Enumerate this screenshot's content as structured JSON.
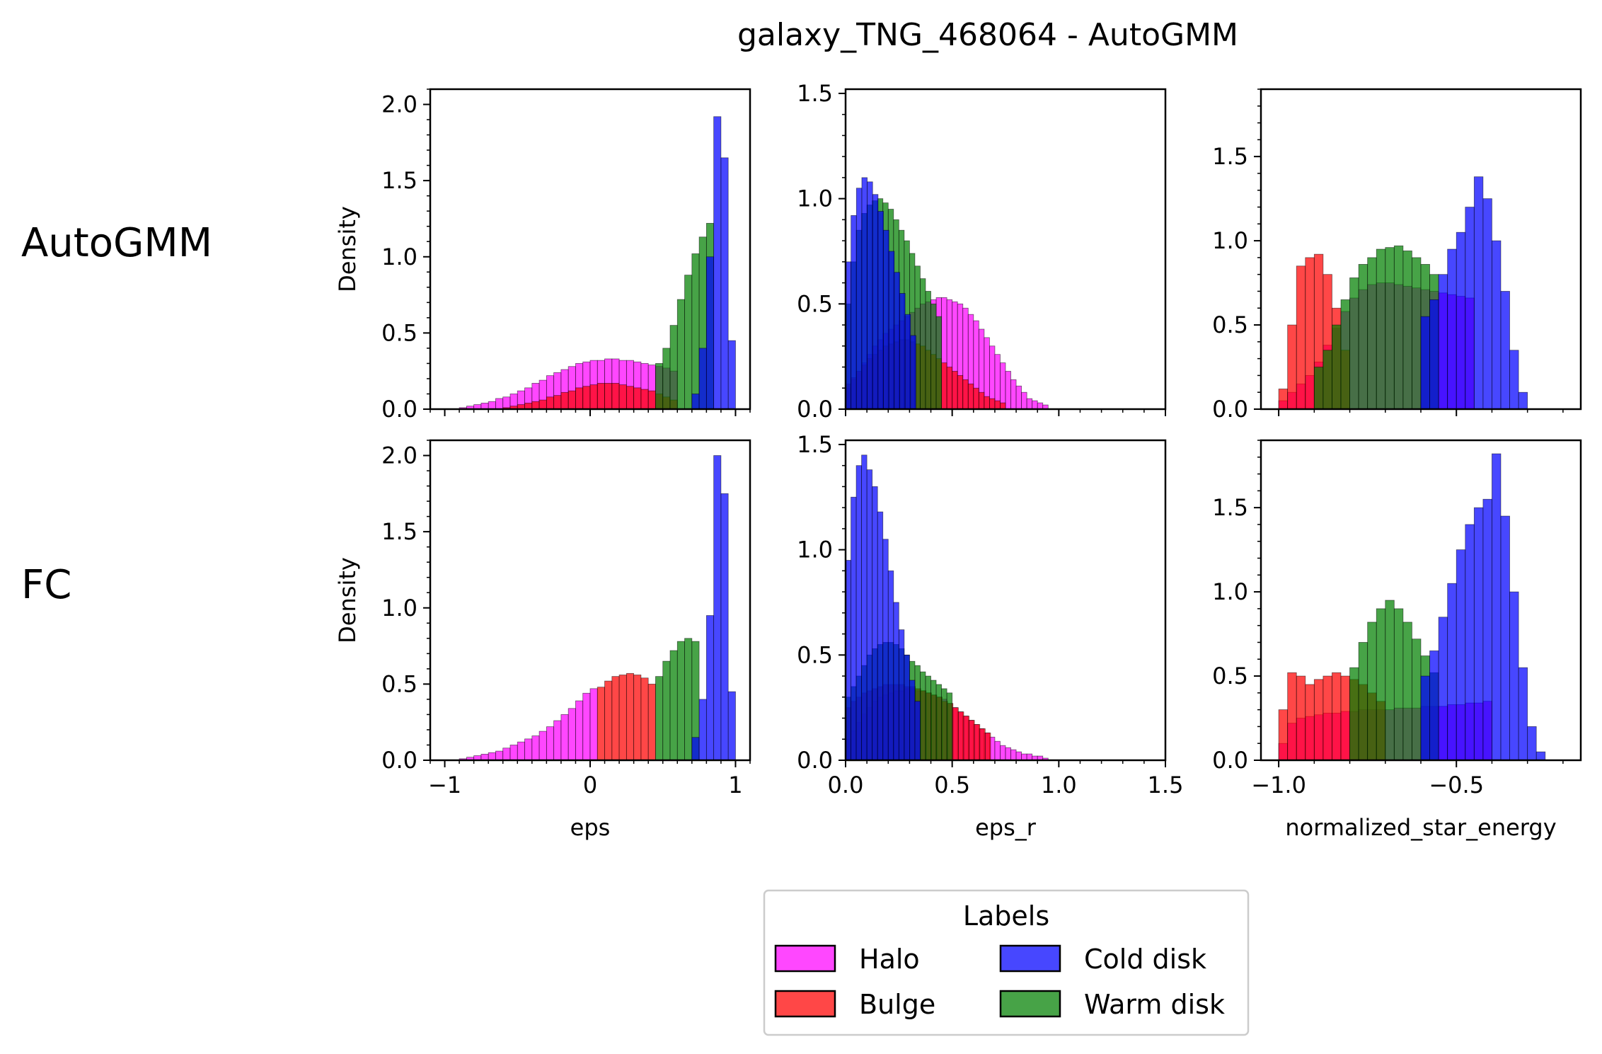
{
  "figure": {
    "title": "galaxy_TNG_468064 - AutoGMM",
    "row_labels": [
      "AutoGMM",
      "FC"
    ]
  },
  "legend": {
    "title": "Labels",
    "entries": [
      {
        "name": "Halo",
        "color": "#ff00ff"
      },
      {
        "name": "Cold disk",
        "color": "#0000ff"
      },
      {
        "name": "Bulge",
        "color": "#ff0000"
      },
      {
        "name": "Warm disk",
        "color": "#008000"
      }
    ]
  },
  "chart_data": [
    {
      "type": "bar",
      "subtype": "histogram",
      "row": 0,
      "col": 0,
      "xlabel": "",
      "ylabel": "Density",
      "xlim": [
        -1.1,
        1.1
      ],
      "ylim": [
        0,
        2.1
      ],
      "xticks": [
        -1,
        0,
        1
      ],
      "xtick_labels": [],
      "yticks": [
        0,
        0.5,
        1.0,
        1.5,
        2.0
      ],
      "ytick_labels": [
        "0.0",
        "0.5",
        "1.0",
        "1.5",
        "2.0"
      ],
      "series": [
        {
          "name": "Halo",
          "range": [
            -0.9,
            0.6
          ],
          "bins": 30,
          "values": [
            0.01,
            0.02,
            0.03,
            0.04,
            0.05,
            0.07,
            0.08,
            0.1,
            0.12,
            0.14,
            0.17,
            0.19,
            0.22,
            0.24,
            0.26,
            0.28,
            0.3,
            0.31,
            0.32,
            0.32,
            0.33,
            0.33,
            0.32,
            0.32,
            0.31,
            0.3,
            0.29,
            0.28,
            0.27,
            0.25
          ]
        },
        {
          "name": "Bulge",
          "range": [
            -0.6,
            0.6
          ],
          "bins": 24,
          "values": [
            0.01,
            0.02,
            0.03,
            0.04,
            0.05,
            0.06,
            0.08,
            0.09,
            0.11,
            0.12,
            0.14,
            0.15,
            0.16,
            0.17,
            0.17,
            0.17,
            0.16,
            0.15,
            0.14,
            0.13,
            0.12,
            0.1,
            0.08,
            0.06
          ]
        },
        {
          "name": "Warm disk",
          "range": [
            0.45,
            0.85
          ],
          "bins": 8,
          "values": [
            0.3,
            0.4,
            0.55,
            0.72,
            0.88,
            1.02,
            1.13,
            1.22
          ]
        },
        {
          "name": "Cold disk",
          "range": [
            0.7,
            1.0
          ],
          "bins": 6,
          "values": [
            0.1,
            0.4,
            1.0,
            1.92,
            1.65,
            0.45
          ]
        }
      ]
    },
    {
      "type": "bar",
      "subtype": "histogram",
      "row": 0,
      "col": 1,
      "xlabel": "",
      "ylabel": "",
      "xlim": [
        0,
        1.5
      ],
      "ylim": [
        0,
        1.52
      ],
      "xticks": [
        0,
        0.5,
        1.0,
        1.5
      ],
      "xtick_labels": [],
      "yticks": [
        0,
        0.5,
        1.0,
        1.5
      ],
      "ytick_labels": [
        "0.0",
        "0.5",
        "1.0",
        "1.5"
      ],
      "series": [
        {
          "name": "Halo",
          "range": [
            0.0,
            0.95
          ],
          "bins": 38,
          "values": [
            0.1,
            0.14,
            0.18,
            0.22,
            0.26,
            0.3,
            0.33,
            0.36,
            0.38,
            0.4,
            0.42,
            0.44,
            0.46,
            0.48,
            0.5,
            0.51,
            0.52,
            0.53,
            0.53,
            0.52,
            0.51,
            0.5,
            0.48,
            0.45,
            0.42,
            0.38,
            0.34,
            0.3,
            0.26,
            0.22,
            0.18,
            0.14,
            0.11,
            0.08,
            0.05,
            0.04,
            0.03,
            0.02
          ]
        },
        {
          "name": "Bulge",
          "range": [
            0.0,
            0.75
          ],
          "bins": 30,
          "values": [
            0.12,
            0.15,
            0.18,
            0.21,
            0.24,
            0.26,
            0.28,
            0.3,
            0.31,
            0.32,
            0.33,
            0.33,
            0.32,
            0.31,
            0.3,
            0.28,
            0.26,
            0.24,
            0.22,
            0.2,
            0.18,
            0.16,
            0.14,
            0.12,
            0.1,
            0.08,
            0.06,
            0.05,
            0.04,
            0.03
          ]
        },
        {
          "name": "Warm disk",
          "range": [
            0.0,
            0.45
          ],
          "bins": 18,
          "values": [
            0.5,
            0.7,
            0.85,
            0.93,
            0.97,
            0.99,
            1.0,
            0.98,
            0.95,
            0.9,
            0.85,
            0.8,
            0.74,
            0.68,
            0.62,
            0.56,
            0.5,
            0.44
          ]
        },
        {
          "name": "Cold disk",
          "range": [
            0.0,
            0.33
          ],
          "bins": 13,
          "values": [
            0.7,
            0.92,
            1.05,
            1.1,
            1.08,
            1.02,
            0.94,
            0.85,
            0.75,
            0.65,
            0.55,
            0.45,
            0.35
          ]
        }
      ]
    },
    {
      "type": "bar",
      "subtype": "histogram",
      "row": 0,
      "col": 2,
      "xlabel": "",
      "ylabel": "",
      "xlim": [
        -1.05,
        -0.15
      ],
      "ylim": [
        0,
        1.9
      ],
      "xticks": [
        -1.0,
        -0.5
      ],
      "xtick_labels": [],
      "yticks": [
        0,
        0.5,
        1.0,
        1.5
      ],
      "ytick_labels": [
        "0.0",
        "0.5",
        "1.0",
        "1.5"
      ],
      "series": [
        {
          "name": "Halo",
          "range": [
            -1.0,
            -0.45
          ],
          "bins": 22,
          "values": [
            0.05,
            0.1,
            0.15,
            0.2,
            0.28,
            0.38,
            0.48,
            0.58,
            0.66,
            0.71,
            0.74,
            0.75,
            0.75,
            0.74,
            0.73,
            0.72,
            0.71,
            0.7,
            0.69,
            0.68,
            0.67,
            0.66
          ]
        },
        {
          "name": "Bulge",
          "range": [
            -1.0,
            -0.8
          ],
          "bins": 8,
          "values": [
            0.12,
            0.5,
            0.85,
            0.9,
            0.92,
            0.8,
            0.6,
            0.35
          ]
        },
        {
          "name": "Warm disk",
          "range": [
            -0.9,
            -0.55
          ],
          "bins": 14,
          "values": [
            0.25,
            0.35,
            0.5,
            0.65,
            0.78,
            0.86,
            0.9,
            0.95,
            0.96,
            0.97,
            0.94,
            0.9,
            0.86,
            0.8
          ]
        },
        {
          "name": "Cold disk",
          "range": [
            -0.6,
            -0.3
          ],
          "bins": 12,
          "values": [
            0.55,
            0.65,
            0.8,
            0.95,
            1.05,
            1.2,
            1.38,
            1.25,
            1.0,
            0.7,
            0.35,
            0.1
          ]
        }
      ]
    },
    {
      "type": "bar",
      "subtype": "histogram",
      "row": 1,
      "col": 0,
      "xlabel": "eps",
      "ylabel": "Density",
      "xlim": [
        -1.1,
        1.1
      ],
      "ylim": [
        0,
        2.1
      ],
      "xticks": [
        -1,
        0,
        1
      ],
      "xtick_labels": [
        "−1",
        "0",
        "1"
      ],
      "yticks": [
        0,
        0.5,
        1.0,
        1.5,
        2.0
      ],
      "ytick_labels": [
        "0.0",
        "0.5",
        "1.0",
        "1.5",
        "2.0"
      ],
      "series": [
        {
          "name": "Halo",
          "range": [
            -0.9,
            0.05
          ],
          "bins": 19,
          "values": [
            0.01,
            0.02,
            0.03,
            0.04,
            0.05,
            0.06,
            0.08,
            0.1,
            0.12,
            0.14,
            0.16,
            0.19,
            0.22,
            0.26,
            0.3,
            0.34,
            0.39,
            0.44,
            0.47
          ]
        },
        {
          "name": "Bulge",
          "range": [
            0.05,
            0.45
          ],
          "bins": 8,
          "values": [
            0.48,
            0.52,
            0.55,
            0.56,
            0.57,
            0.56,
            0.54,
            0.5
          ]
        },
        {
          "name": "Warm disk",
          "range": [
            0.45,
            0.75
          ],
          "bins": 6,
          "values": [
            0.55,
            0.65,
            0.72,
            0.78,
            0.8,
            0.78
          ]
        },
        {
          "name": "Cold disk",
          "range": [
            0.7,
            1.0
          ],
          "bins": 6,
          "values": [
            0.15,
            0.4,
            0.95,
            2.0,
            1.75,
            0.45
          ]
        }
      ]
    },
    {
      "type": "bar",
      "subtype": "histogram",
      "row": 1,
      "col": 1,
      "xlabel": "eps_r",
      "ylabel": "",
      "xlim": [
        0,
        1.5
      ],
      "ylim": [
        0,
        1.52
      ],
      "xticks": [
        0,
        0.5,
        1.0,
        1.5
      ],
      "xtick_labels": [
        "0.0",
        "0.5",
        "1.0",
        "1.5"
      ],
      "yticks": [
        0,
        0.5,
        1.0,
        1.5
      ],
      "ytick_labels": [
        "0.0",
        "0.5",
        "1.0",
        "1.5"
      ],
      "series": [
        {
          "name": "Halo",
          "range": [
            0.0,
            0.95
          ],
          "bins": 38,
          "values": [
            0.1,
            0.14,
            0.18,
            0.22,
            0.25,
            0.28,
            0.3,
            0.31,
            0.32,
            0.33,
            0.33,
            0.34,
            0.34,
            0.33,
            0.33,
            0.32,
            0.31,
            0.3,
            0.29,
            0.27,
            0.25,
            0.23,
            0.21,
            0.19,
            0.17,
            0.15,
            0.13,
            0.11,
            0.09,
            0.07,
            0.06,
            0.05,
            0.04,
            0.03,
            0.03,
            0.02,
            0.02,
            0.01
          ]
        },
        {
          "name": "Bulge",
          "range": [
            0.0,
            0.68
          ],
          "bins": 27,
          "values": [
            0.25,
            0.28,
            0.3,
            0.32,
            0.33,
            0.34,
            0.35,
            0.36,
            0.36,
            0.36,
            0.36,
            0.35,
            0.35,
            0.34,
            0.33,
            0.32,
            0.31,
            0.3,
            0.28,
            0.27,
            0.25,
            0.23,
            0.21,
            0.19,
            0.17,
            0.15,
            0.13
          ]
        },
        {
          "name": "Warm disk",
          "range": [
            0.0,
            0.5
          ],
          "bins": 20,
          "values": [
            0.3,
            0.35,
            0.4,
            0.45,
            0.5,
            0.53,
            0.55,
            0.56,
            0.56,
            0.55,
            0.53,
            0.5,
            0.47,
            0.45,
            0.42,
            0.4,
            0.38,
            0.36,
            0.34,
            0.32
          ]
        },
        {
          "name": "Cold disk",
          "range": [
            0.0,
            0.35
          ],
          "bins": 14,
          "values": [
            0.95,
            1.25,
            1.4,
            1.45,
            1.38,
            1.3,
            1.18,
            1.05,
            0.9,
            0.75,
            0.62,
            0.5,
            0.38,
            0.28
          ]
        }
      ]
    },
    {
      "type": "bar",
      "subtype": "histogram",
      "row": 1,
      "col": 2,
      "xlabel": "normalized_star_energy",
      "ylabel": "",
      "xlim": [
        -1.05,
        -0.15
      ],
      "ylim": [
        0,
        1.9
      ],
      "xticks": [
        -1.0,
        -0.5
      ],
      "xtick_labels": [
        "−1.0",
        "−0.5"
      ],
      "yticks": [
        0,
        0.5,
        1.0,
        1.5
      ],
      "ytick_labels": [
        "0.0",
        "0.5",
        "1.0",
        "1.5"
      ],
      "series": [
        {
          "name": "Halo",
          "range": [
            -1.0,
            -0.4
          ],
          "bins": 24,
          "values": [
            0.1,
            0.22,
            0.25,
            0.26,
            0.27,
            0.28,
            0.28,
            0.29,
            0.29,
            0.3,
            0.3,
            0.3,
            0.3,
            0.31,
            0.31,
            0.31,
            0.32,
            0.32,
            0.32,
            0.33,
            0.33,
            0.34,
            0.34,
            0.35
          ]
        },
        {
          "name": "Bulge",
          "range": [
            -1.0,
            -0.7
          ],
          "bins": 12,
          "values": [
            0.3,
            0.52,
            0.5,
            0.45,
            0.48,
            0.5,
            0.52,
            0.5,
            0.48,
            0.45,
            0.4,
            0.35
          ]
        },
        {
          "name": "Warm disk",
          "range": [
            -0.8,
            -0.55
          ],
          "bins": 10,
          "values": [
            0.55,
            0.7,
            0.82,
            0.9,
            0.95,
            0.9,
            0.82,
            0.72,
            0.62,
            0.52
          ]
        },
        {
          "name": "Cold disk",
          "range": [
            -0.6,
            -0.25
          ],
          "bins": 14,
          "values": [
            0.5,
            0.65,
            0.85,
            1.05,
            1.25,
            1.4,
            1.5,
            1.55,
            1.82,
            1.45,
            1.0,
            0.55,
            0.2,
            0.05
          ]
        }
      ]
    }
  ]
}
